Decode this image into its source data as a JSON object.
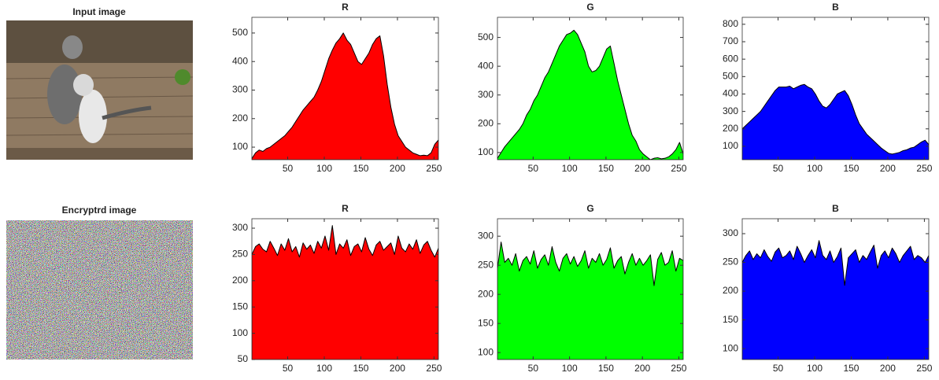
{
  "images": [
    {
      "title": "Input image"
    },
    {
      "title": "Encryptrd image"
    }
  ],
  "chart_data": [
    {
      "type": "area",
      "title": "R",
      "color": "#ff0000",
      "xlim": [
        1,
        256
      ],
      "xticks": [
        50,
        100,
        150,
        200,
        250
      ],
      "ylim": [
        56,
        555
      ],
      "yticks": [
        100,
        200,
        300,
        400,
        500
      ],
      "x": [
        1,
        6,
        11,
        16,
        21,
        26,
        31,
        36,
        41,
        46,
        51,
        56,
        61,
        66,
        71,
        76,
        81,
        86,
        91,
        96,
        101,
        106,
        111,
        116,
        121,
        126,
        131,
        136,
        141,
        146,
        151,
        156,
        161,
        166,
        171,
        176,
        181,
        186,
        191,
        196,
        201,
        206,
        211,
        216,
        221,
        226,
        231,
        236,
        241,
        246,
        251,
        256
      ],
      "values": [
        60,
        80,
        90,
        85,
        95,
        100,
        110,
        120,
        130,
        140,
        155,
        170,
        190,
        210,
        230,
        245,
        260,
        275,
        300,
        330,
        370,
        410,
        440,
        465,
        480,
        500,
        475,
        460,
        430,
        400,
        390,
        410,
        430,
        460,
        480,
        490,
        420,
        320,
        240,
        180,
        140,
        120,
        100,
        90,
        80,
        75,
        70,
        72,
        70,
        80,
        110,
        125
      ]
    },
    {
      "type": "area",
      "title": "G",
      "color": "#00ff00",
      "xlim": [
        1,
        256
      ],
      "xticks": [
        50,
        100,
        150,
        200,
        250
      ],
      "ylim": [
        75,
        570
      ],
      "yticks": [
        100,
        200,
        300,
        400,
        500
      ],
      "x": [
        1,
        6,
        11,
        16,
        21,
        26,
        31,
        36,
        41,
        46,
        51,
        56,
        61,
        66,
        71,
        76,
        81,
        86,
        91,
        96,
        101,
        106,
        111,
        116,
        121,
        126,
        131,
        136,
        141,
        146,
        151,
        156,
        161,
        166,
        171,
        176,
        181,
        186,
        191,
        196,
        201,
        206,
        211,
        216,
        221,
        226,
        231,
        236,
        241,
        246,
        251,
        256
      ],
      "values": [
        80,
        100,
        120,
        135,
        150,
        165,
        180,
        200,
        230,
        250,
        280,
        300,
        330,
        360,
        380,
        410,
        440,
        470,
        490,
        510,
        515,
        525,
        510,
        480,
        450,
        400,
        380,
        385,
        400,
        430,
        460,
        470,
        410,
        350,
        300,
        250,
        200,
        160,
        140,
        110,
        95,
        85,
        75,
        80,
        82,
        78,
        80,
        85,
        95,
        110,
        135,
        95
      ]
    },
    {
      "type": "area",
      "title": "B",
      "color": "#0000ff",
      "xlim": [
        1,
        256
      ],
      "xticks": [
        50,
        100,
        150,
        200,
        250
      ],
      "ylim": [
        23,
        840
      ],
      "yticks": [
        100,
        200,
        300,
        400,
        500,
        600,
        700,
        800
      ],
      "x": [
        1,
        6,
        11,
        16,
        21,
        26,
        31,
        36,
        41,
        46,
        51,
        56,
        61,
        66,
        71,
        76,
        81,
        86,
        91,
        96,
        101,
        106,
        111,
        116,
        121,
        126,
        131,
        136,
        141,
        146,
        151,
        156,
        161,
        166,
        171,
        176,
        181,
        186,
        191,
        196,
        201,
        206,
        211,
        216,
        221,
        226,
        231,
        236,
        241,
        246,
        251,
        256
      ],
      "values": [
        200,
        220,
        240,
        260,
        280,
        300,
        330,
        360,
        390,
        420,
        440,
        440,
        440,
        445,
        430,
        440,
        450,
        455,
        440,
        430,
        400,
        360,
        330,
        320,
        340,
        370,
        400,
        410,
        420,
        390,
        340,
        280,
        230,
        200,
        170,
        150,
        130,
        110,
        90,
        75,
        60,
        55,
        60,
        65,
        75,
        80,
        90,
        95,
        110,
        125,
        135,
        110
      ]
    },
    {
      "type": "area",
      "title": "R",
      "color": "#ff0000",
      "xlim": [
        1,
        256
      ],
      "xticks": [
        50,
        100,
        150,
        200,
        250
      ],
      "ylim": [
        50,
        318
      ],
      "yticks": [
        50,
        100,
        150,
        200,
        250,
        300
      ],
      "x": [
        1,
        6,
        11,
        16,
        21,
        26,
        31,
        36,
        41,
        46,
        51,
        56,
        61,
        66,
        71,
        76,
        81,
        86,
        91,
        96,
        101,
        106,
        111,
        116,
        121,
        126,
        131,
        136,
        141,
        146,
        151,
        156,
        161,
        166,
        171,
        176,
        181,
        186,
        191,
        196,
        201,
        206,
        211,
        216,
        221,
        226,
        231,
        236,
        241,
        246,
        251,
        256
      ],
      "values": [
        250,
        265,
        270,
        260,
        255,
        275,
        262,
        248,
        270,
        258,
        280,
        255,
        265,
        245,
        272,
        260,
        268,
        252,
        275,
        262,
        285,
        258,
        305,
        250,
        270,
        262,
        278,
        248,
        265,
        270,
        255,
        282,
        260,
        248,
        268,
        275,
        258,
        265,
        272,
        250,
        285,
        262,
        255,
        270,
        260,
        278,
        252,
        268,
        275,
        258,
        245,
        262
      ]
    },
    {
      "type": "area",
      "title": "G",
      "color": "#00ff00",
      "xlim": [
        1,
        256
      ],
      "xticks": [
        50,
        100,
        150,
        200,
        250
      ],
      "ylim": [
        88,
        330
      ],
      "yticks": [
        100,
        150,
        200,
        250,
        300
      ],
      "x": [
        1,
        6,
        11,
        16,
        21,
        26,
        31,
        36,
        41,
        46,
        51,
        56,
        61,
        66,
        71,
        76,
        81,
        86,
        91,
        96,
        101,
        106,
        111,
        116,
        121,
        126,
        131,
        136,
        141,
        146,
        151,
        156,
        161,
        166,
        171,
        176,
        181,
        186,
        191,
        196,
        201,
        206,
        211,
        216,
        221,
        226,
        231,
        236,
        241,
        246,
        251,
        256
      ],
      "values": [
        245,
        290,
        255,
        262,
        250,
        270,
        240,
        258,
        265,
        252,
        275,
        245,
        260,
        268,
        250,
        282,
        255,
        240,
        262,
        270,
        252,
        265,
        248,
        258,
        275,
        245,
        262,
        255,
        270,
        250,
        260,
        280,
        245,
        258,
        265,
        235,
        255,
        270,
        250,
        262,
        250,
        258,
        268,
        215,
        260,
        272,
        250,
        255,
        275,
        240,
        262,
        258
      ]
    },
    {
      "type": "area",
      "title": "B",
      "color": "#0000ff",
      "xlim": [
        1,
        256
      ],
      "xticks": [
        50,
        100,
        150,
        200,
        250
      ],
      "ylim": [
        81,
        326
      ],
      "yticks": [
        100,
        150,
        200,
        250,
        300
      ],
      "x": [
        1,
        6,
        11,
        16,
        21,
        26,
        31,
        36,
        41,
        46,
        51,
        56,
        61,
        66,
        71,
        76,
        81,
        86,
        91,
        96,
        101,
        106,
        111,
        116,
        121,
        126,
        131,
        136,
        141,
        146,
        151,
        156,
        161,
        166,
        171,
        176,
        181,
        186,
        191,
        196,
        201,
        206,
        211,
        216,
        221,
        226,
        231,
        236,
        241,
        246,
        251,
        256
      ],
      "values": [
        250,
        262,
        270,
        255,
        265,
        258,
        272,
        260,
        252,
        268,
        275,
        258,
        262,
        270,
        255,
        278,
        265,
        250,
        262,
        272,
        258,
        288,
        262,
        255,
        270,
        250,
        260,
        275,
        210,
        258,
        265,
        272,
        250,
        262,
        255,
        268,
        280,
        240,
        262,
        270,
        258,
        275,
        265,
        250,
        262,
        270,
        278,
        255,
        262,
        258,
        250,
        262
      ]
    }
  ]
}
